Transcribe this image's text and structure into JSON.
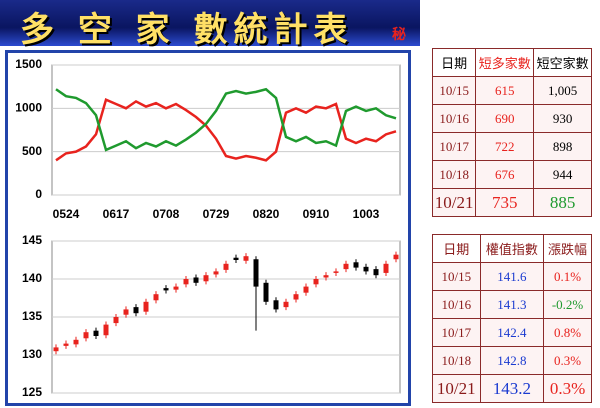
{
  "title": "多 空 家 數統計表",
  "title_mark": "秘",
  "chart_data": [
    {
      "type": "line",
      "categories": [
        null,
        "0524",
        null,
        null,
        null,
        null,
        "0617",
        null,
        null,
        null,
        null,
        "0708",
        null,
        null,
        null,
        null,
        "0729",
        null,
        null,
        null,
        null,
        "0820",
        null,
        null,
        null,
        null,
        "0910",
        null,
        null,
        null,
        null,
        "1003",
        null,
        null,
        null
      ],
      "series": [
        {
          "color": "#e8231e",
          "values": [
            400,
            480,
            500,
            560,
            700,
            1100,
            1050,
            1000,
            1080,
            1020,
            1060,
            1000,
            1050,
            980,
            900,
            800,
            650,
            450,
            420,
            450,
            430,
            400,
            500,
            950,
            1000,
            950,
            1020,
            1000,
            1050,
            650,
            600,
            650,
            620,
            700,
            735
          ]
        },
        {
          "color": "#1f9a2e",
          "values": [
            1220,
            1140,
            1120,
            1060,
            920,
            520,
            570,
            620,
            540,
            600,
            560,
            620,
            570,
            640,
            720,
            820,
            970,
            1170,
            1200,
            1170,
            1190,
            1220,
            1120,
            670,
            620,
            670,
            600,
            620,
            570,
            970,
            1020,
            970,
            1000,
            920,
            885
          ]
        }
      ],
      "ylim": [
        0,
        1500
      ],
      "yticks": [
        0,
        500,
        1000,
        1500
      ],
      "grid": true
    },
    {
      "type": "candlestick",
      "up_color": "#e8231e",
      "down_color": "#000000",
      "open": [
        130.5,
        131.2,
        131.4,
        132.2,
        133.2,
        132.6,
        134.2,
        135.3,
        136.3,
        135.7,
        137.2,
        138.8,
        138.6,
        139.3,
        140.2,
        139.7,
        140.6,
        141.2,
        142.8,
        142.4,
        142.6,
        139.5,
        137.2,
        136.3,
        137.3,
        138.2,
        139.3,
        140.2,
        140.8,
        141.3,
        142.2,
        141.6,
        141.3,
        140.8,
        142.6
      ],
      "high": [
        131.4,
        131.9,
        132.4,
        133.4,
        133.6,
        134.4,
        135.4,
        136.4,
        136.7,
        137.4,
        138.4,
        139.2,
        139.4,
        140.4,
        140.6,
        140.9,
        141.4,
        142.4,
        143.2,
        143.4,
        143.0,
        139.9,
        137.6,
        137.4,
        138.4,
        139.4,
        140.4,
        140.9,
        141.4,
        142.4,
        142.6,
        142.0,
        141.7,
        142.4,
        143.6
      ],
      "low": [
        130.1,
        130.8,
        131.0,
        131.8,
        132.1,
        132.2,
        133.8,
        134.9,
        135.1,
        135.3,
        136.8,
        138.1,
        138.2,
        138.9,
        139.1,
        139.3,
        140.2,
        140.8,
        142.1,
        142.0,
        133.2,
        136.6,
        135.6,
        135.9,
        136.9,
        137.8,
        138.9,
        139.8,
        140.4,
        140.9,
        141.1,
        140.6,
        140.1,
        140.4,
        142.2
      ],
      "close": [
        131,
        131.5,
        132,
        133,
        132.5,
        134,
        135,
        136,
        135.5,
        137,
        138,
        138.5,
        139,
        140,
        139.5,
        140.5,
        141,
        142,
        142.5,
        143,
        139,
        137,
        136,
        137,
        138,
        139,
        140,
        140.5,
        141,
        142,
        141.5,
        141,
        140.5,
        142,
        143.2
      ],
      "ylim": [
        125,
        145
      ],
      "yticks": [
        125,
        130,
        135,
        140,
        145
      ],
      "grid": true
    }
  ],
  "tables": [
    {
      "header": [
        "日期",
        "短多家數",
        "短空家數"
      ],
      "rows": [
        [
          "10/15",
          "615",
          "1,005"
        ],
        [
          "10/16",
          "690",
          "930"
        ],
        [
          "10/17",
          "722",
          "898"
        ],
        [
          "10/18",
          "676",
          "944"
        ],
        [
          "10/21",
          "735",
          "885"
        ]
      ]
    },
    {
      "header": [
        "日期",
        "權值指數",
        "漲跌幅"
      ],
      "rows": [
        [
          "10/15",
          "141.6",
          "0.1%"
        ],
        [
          "10/16",
          "141.3",
          "-0.2%"
        ],
        [
          "10/17",
          "142.4",
          "0.8%"
        ],
        [
          "10/18",
          "142.8",
          "0.3%"
        ],
        [
          "10/21",
          "143.2",
          "0.3%"
        ]
      ]
    }
  ]
}
